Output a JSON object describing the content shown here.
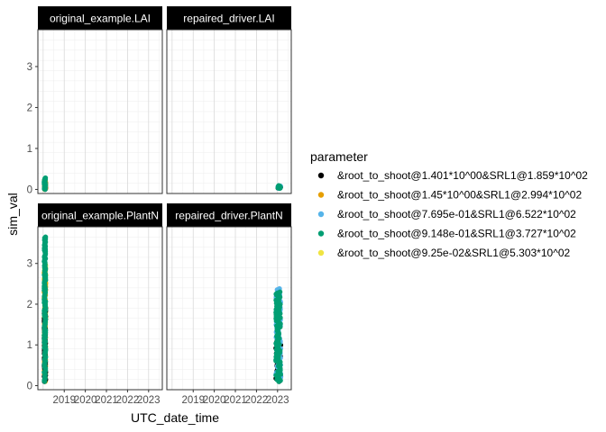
{
  "chart_data": {
    "type": "scatter",
    "facet_layout": "2x2 grid",
    "xlabel": "UTC_date_time",
    "ylabel": "sim_val",
    "ylim": [
      -0.1,
      3.9
    ],
    "yticks": [
      0,
      1,
      2,
      3
    ],
    "xlim": [
      2017.75,
      2023.65
    ],
    "xticks": [
      2019,
      2020,
      2021,
      2022,
      2023
    ],
    "xtick_labels": [
      "2019",
      "2020",
      "2021",
      "2022",
      "2023"
    ],
    "grid": true,
    "legend": {
      "title": "parameter",
      "placement": "right",
      "entries": [
        {
          "label": "&root_to_shoot@1.401*10^00&SRL1@1.859*10^02",
          "color": "#000000"
        },
        {
          "label": "&root_to_shoot@1.45*10^00&SRL1@2.994*10^02",
          "color": "#E69F00"
        },
        {
          "label": "&root_to_shoot@7.695e-01&SRL1@6.522*10^02",
          "color": "#56B4E9"
        },
        {
          "label": "&root_to_shoot@9.148e-01&SRL1@3.727*10^02",
          "color": "#009E73"
        },
        {
          "label": "&root_to_shoot@9.25e-02&SRL1@5.303*10^02",
          "color": "#F0E442"
        }
      ]
    },
    "panels": [
      {
        "title": "original_example.LAI",
        "x_range": [
          2018.05,
          2018.12
        ],
        "series": [
          {
            "name": "&root_to_shoot@1.401*10^00&SRL1@1.859*10^02",
            "y_range": [
              0.0,
              0.2
            ]
          },
          {
            "name": "&root_to_shoot@1.45*10^00&SRL1@2.994*10^02",
            "y_range": [
              0.0,
              0.22
            ]
          },
          {
            "name": "&root_to_shoot@9.148e-01&SRL1@3.727*10^02",
            "y_range": [
              0.0,
              0.28
            ]
          }
        ]
      },
      {
        "title": "repaired_driver.LAI",
        "x_range": [
          2023.02,
          2023.14
        ],
        "series": [
          {
            "name": "&root_to_shoot@1.401*10^00&SRL1@1.859*10^02",
            "y_range": [
              0.03,
              0.06
            ]
          },
          {
            "name": "&root_to_shoot@7.695e-01&SRL1@6.522*10^02",
            "y_range": [
              0.03,
              0.08
            ]
          },
          {
            "name": "&root_to_shoot@9.148e-01&SRL1@3.727*10^02",
            "y_range": [
              0.03,
              0.09
            ]
          }
        ]
      },
      {
        "title": "original_example.PlantN",
        "x_range": [
          2018.05,
          2018.12
        ],
        "series": [
          {
            "name": "&root_to_shoot@9.25e-02&SRL1@5.303*10^02",
            "y_range": [
              0.9,
              3.0
            ]
          },
          {
            "name": "&root_to_shoot@1.45*10^00&SRL1@2.994*10^02",
            "y_range": [
              0.1,
              2.8
            ]
          },
          {
            "name": "&root_to_shoot@1.401*10^00&SRL1@1.859*10^02",
            "y_range": [
              0.1,
              1.9
            ]
          },
          {
            "name": "&root_to_shoot@9.148e-01&SRL1@3.727*10^02",
            "y_range": [
              0.1,
              3.65
            ]
          }
        ]
      },
      {
        "title": "repaired_driver.PlantN",
        "x_range": [
          2022.92,
          2023.15
        ],
        "series": [
          {
            "name": "&root_to_shoot@1.401*10^00&SRL1@1.859*10^02",
            "y_range": [
              0.1,
              1.15
            ]
          },
          {
            "name": "&root_to_shoot@7.695e-01&SRL1@6.522*10^02",
            "y_range": [
              0.2,
              2.38
            ]
          },
          {
            "name": "&root_to_shoot@9.148e-01&SRL1@3.727*10^02",
            "y_range": [
              0.1,
              2.3
            ]
          }
        ]
      }
    ]
  }
}
